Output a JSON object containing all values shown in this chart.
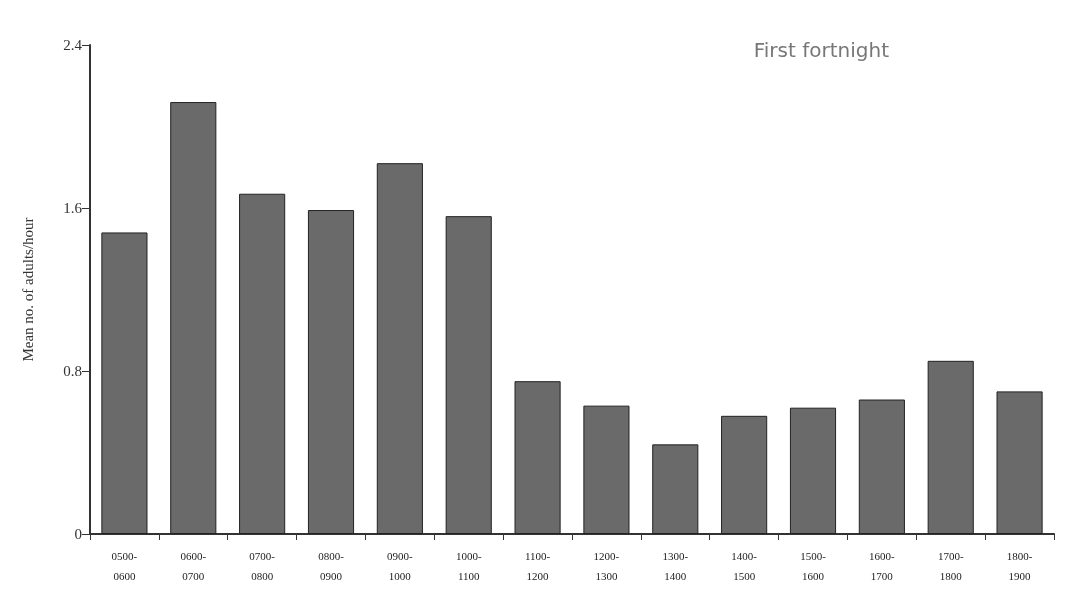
{
  "chart_data": {
    "type": "bar",
    "title": "First fortnight",
    "ylabel": "Mean no. of adults/hour",
    "categories": [
      "0500-\n0600",
      "0600-\n0700",
      "0700-\n0800",
      "0800-\n0900",
      "0900-\n1000",
      "1000-\n1100",
      "1100-\n1200",
      "1200-\n1300",
      "1300-\n1400",
      "1400-\n1500",
      "1500-\n1600",
      "1600-\n1700",
      "1700-\n1800",
      "1800-\n1900"
    ],
    "values": [
      1.48,
      2.12,
      1.67,
      1.59,
      1.82,
      1.56,
      0.75,
      0.63,
      0.44,
      0.58,
      0.62,
      0.66,
      0.85,
      0.7
    ],
    "color": "#6a6a6a",
    "ylim": [
      0,
      2.4
    ],
    "yticks": [
      0,
      0.8,
      1.6,
      2.4
    ],
    "grid": false
  }
}
